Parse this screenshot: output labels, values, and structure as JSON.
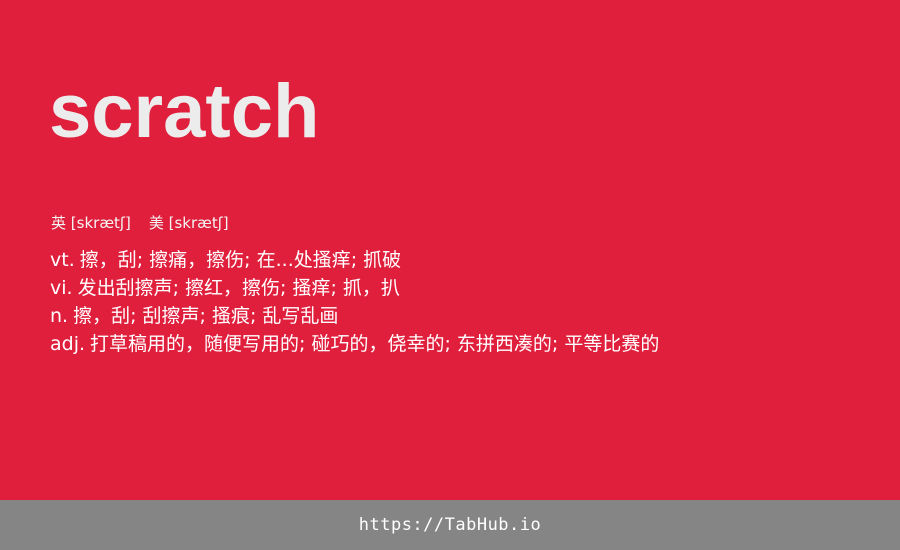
{
  "word": "scratch",
  "phonetics": {
    "uk_label": "英",
    "uk_ipa": "[skrætʃ]",
    "us_label": "美",
    "us_ipa": "[skrætʃ]"
  },
  "definitions": [
    {
      "pos": "vt.",
      "text": "擦，刮; 擦痛，擦伤; 在...处搔痒; 抓破"
    },
    {
      "pos": "vi.",
      "text": "发出刮擦声; 擦红，擦伤; 搔痒; 抓，扒"
    },
    {
      "pos": "n.",
      "text": "擦，刮; 刮擦声; 搔痕; 乱写乱画"
    },
    {
      "pos": "adj.",
      "text": "打草稿用的，随便写用的; 碰巧的，侥幸的; 东拼西凑的; 平等比赛的"
    }
  ],
  "footer": {
    "link_text": "https://TabHub.io"
  },
  "colors": {
    "background": "#e01f3d",
    "word_text": "#ececec",
    "footer_bar": "#858585"
  }
}
